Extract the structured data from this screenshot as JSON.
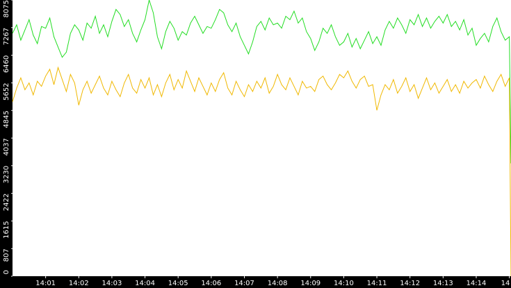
{
  "chart_data": {
    "type": "line",
    "x": [
      840,
      840.125,
      840.25,
      840.375,
      840.5,
      840.625,
      840.75,
      840.875,
      841,
      841.125,
      841.25,
      841.375,
      841.5,
      841.625,
      841.75,
      841.875,
      842,
      842.125,
      842.25,
      842.375,
      842.5,
      842.625,
      842.75,
      842.875,
      843,
      843.125,
      843.25,
      843.375,
      843.5,
      843.625,
      843.75,
      843.875,
      844,
      844.125,
      844.25,
      844.375,
      844.5,
      844.625,
      844.75,
      844.875,
      845,
      845.125,
      845.25,
      845.375,
      845.5,
      845.625,
      845.75,
      845.875,
      846,
      846.125,
      846.25,
      846.375,
      846.5,
      846.625,
      846.75,
      846.875,
      847,
      847.125,
      847.25,
      847.375,
      847.5,
      847.625,
      847.75,
      847.875,
      848,
      848.125,
      848.25,
      848.375,
      848.5,
      848.625,
      848.75,
      848.875,
      849,
      849.125,
      849.25,
      849.375,
      849.5,
      849.625,
      849.75,
      849.875,
      850,
      850.125,
      850.25,
      850.375,
      850.5,
      850.625,
      850.75,
      850.875,
      851,
      851.125,
      851.25,
      851.375,
      851.5,
      851.625,
      851.75,
      851.875,
      852,
      852.125,
      852.25,
      852.375,
      852.5,
      852.625,
      852.75,
      852.875,
      853,
      853.125,
      853.25,
      853.375,
      853.5,
      853.625,
      853.75,
      853.875,
      854,
      854.125,
      854.25,
      854.375,
      854.5,
      854.625,
      854.75,
      854.875,
      855,
      855.05
    ],
    "series": [
      {
        "color": "#22dd22",
        "values": [
          7100,
          7350,
          6900,
          7200,
          7500,
          7050,
          6800,
          7300,
          7250,
          7550,
          7000,
          6700,
          6400,
          6550,
          7100,
          7350,
          7200,
          6900,
          7400,
          7250,
          7600,
          7100,
          7350,
          7000,
          7450,
          7800,
          7650,
          7300,
          7500,
          7100,
          6850,
          7200,
          7500,
          8075,
          7700,
          7000,
          6650,
          7150,
          7450,
          7250,
          6900,
          7150,
          7050,
          7400,
          7600,
          7350,
          7100,
          7300,
          7250,
          7500,
          7800,
          7700,
          7350,
          7150,
          7400,
          7000,
          6750,
          6500,
          6850,
          7300,
          7450,
          7200,
          7550,
          7350,
          7400,
          7250,
          7600,
          7500,
          7750,
          7400,
          7550,
          7150,
          6950,
          6600,
          6850,
          7250,
          7100,
          7350,
          7000,
          6750,
          6850,
          7100,
          6700,
          6950,
          6650,
          6900,
          7150,
          6800,
          7000,
          6750,
          7200,
          7450,
          7250,
          7550,
          7350,
          7100,
          7500,
          7350,
          7650,
          7300,
          7550,
          7250,
          7450,
          7600,
          7400,
          7650,
          7300,
          7450,
          7200,
          7500,
          7050,
          7250,
          6750,
          6950,
          7100,
          6850,
          7300,
          7550,
          7150,
          6900,
          7000,
          3300
        ]
      },
      {
        "color": "#f0b800",
        "values": [
          5100,
          5500,
          5800,
          5450,
          5650,
          5300,
          5700,
          5550,
          5850,
          6050,
          5600,
          6100,
          5750,
          5400,
          5900,
          5650,
          5000,
          5450,
          5700,
          5350,
          5600,
          5850,
          5500,
          5300,
          5700,
          5450,
          5250,
          5650,
          5900,
          5500,
          5350,
          5750,
          5500,
          5800,
          5300,
          5600,
          5250,
          5650,
          5900,
          5450,
          5750,
          5500,
          6000,
          5700,
          5400,
          5800,
          5550,
          5300,
          5650,
          5400,
          5750,
          5950,
          5500,
          5300,
          5700,
          5450,
          5250,
          5600,
          5400,
          5700,
          5500,
          5800,
          5350,
          5550,
          5900,
          5600,
          5450,
          5800,
          5550,
          5300,
          5700,
          5500,
          5550,
          5400,
          5750,
          5850,
          5600,
          5450,
          5650,
          5900,
          5800,
          6000,
          5700,
          5500,
          5750,
          5850,
          5550,
          5600,
          4850,
          5300,
          5600,
          5450,
          5750,
          5350,
          5550,
          5800,
          5400,
          5600,
          5200,
          5500,
          5800,
          5450,
          5650,
          5350,
          5550,
          5750,
          5400,
          5600,
          5350,
          5700,
          5500,
          5650,
          5750,
          5500,
          5850,
          5600,
          5400,
          5700,
          5900,
          5550,
          5800,
          0
        ]
      }
    ],
    "xlim": [
      840,
      855.05
    ],
    "ylim": [
      0,
      8075
    ],
    "xticks": [
      {
        "value": 841,
        "label": "14:01"
      },
      {
        "value": 842,
        "label": "14:02"
      },
      {
        "value": 843,
        "label": "14:03"
      },
      {
        "value": 844,
        "label": "14:04"
      },
      {
        "value": 845,
        "label": "14:05"
      },
      {
        "value": 846,
        "label": "14:06"
      },
      {
        "value": 847,
        "label": "14:07"
      },
      {
        "value": 848,
        "label": "14:08"
      },
      {
        "value": 849,
        "label": "14:09"
      },
      {
        "value": 850,
        "label": "14:10"
      },
      {
        "value": 851,
        "label": "14:11"
      },
      {
        "value": 852,
        "label": "14:12"
      },
      {
        "value": 853,
        "label": "14:13"
      },
      {
        "value": 854,
        "label": "14:14"
      },
      {
        "value": 855,
        "label": "14"
      }
    ],
    "yticks": [
      0,
      807,
      1615,
      2422,
      3230,
      4037,
      4845,
      5652,
      6460,
      7267,
      8075
    ]
  }
}
